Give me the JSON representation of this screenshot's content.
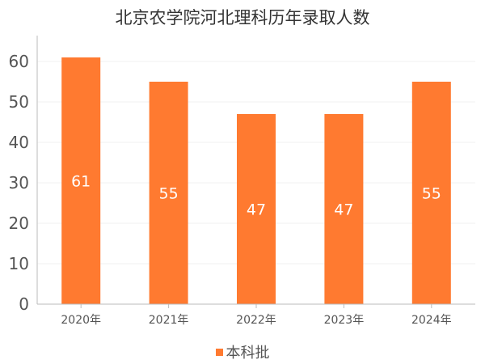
{
  "colors": {
    "bar": "#ff7a30",
    "axis": "#bbbbbb",
    "grid": "#f2f2f2",
    "tick_text": "#555555",
    "bar_label": "#ffffff"
  },
  "chart_data": {
    "type": "bar",
    "title": "北京农学院河北理科历年录取人数",
    "xlabel": "",
    "ylabel": "",
    "categories": [
      "2020年",
      "2021年",
      "2022年",
      "2023年",
      "2024年"
    ],
    "series": [
      {
        "name": "本科批",
        "values": [
          61,
          55,
          47,
          47,
          55
        ]
      }
    ],
    "ylim": [
      0,
      60
    ],
    "yticks": [
      0,
      10,
      20,
      30,
      40,
      50,
      60
    ],
    "grid": true,
    "legend": "bottom-center",
    "data_labels": "inside-middle"
  }
}
